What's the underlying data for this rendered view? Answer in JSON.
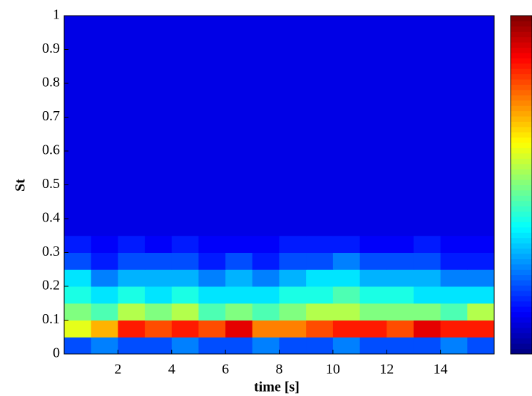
{
  "chart_data": {
    "type": "heatmap",
    "xlabel": "time [s]",
    "ylabel": "St",
    "xlim": [
      0,
      16
    ],
    "ylim": [
      0,
      1
    ],
    "xticks": [
      2,
      4,
      6,
      8,
      10,
      12,
      14
    ],
    "yticks": [
      0,
      0.1,
      0.2,
      0.3,
      0.4,
      0.5,
      0.6,
      0.7,
      0.8,
      0.9,
      1
    ],
    "colormap": "jet",
    "clim": [
      0,
      1
    ],
    "colorbar": true,
    "xbins": [
      0,
      1,
      2,
      3,
      4,
      5,
      6,
      7,
      8,
      9,
      10,
      11,
      12,
      13,
      14,
      15,
      16
    ],
    "ybins": [
      0,
      0.05,
      0.1,
      0.15,
      0.2,
      0.25,
      0.3,
      0.35,
      0.4,
      0.45,
      0.5,
      0.55,
      0.6,
      0.65,
      0.7,
      0.75,
      0.8,
      0.85,
      0.9,
      0.95,
      1
    ],
    "z": [
      [
        0.2,
        0.25,
        0.2,
        0.2,
        0.25,
        0.2,
        0.2,
        0.25,
        0.2,
        0.2,
        0.25,
        0.2,
        0.2,
        0.2,
        0.25,
        0.2
      ],
      [
        0.6,
        0.7,
        0.85,
        0.8,
        0.85,
        0.8,
        0.9,
        0.75,
        0.75,
        0.8,
        0.85,
        0.85,
        0.8,
        0.9,
        0.85,
        0.85
      ],
      [
        0.5,
        0.45,
        0.55,
        0.5,
        0.55,
        0.45,
        0.5,
        0.45,
        0.5,
        0.55,
        0.55,
        0.5,
        0.5,
        0.5,
        0.45,
        0.55
      ],
      [
        0.4,
        0.35,
        0.4,
        0.35,
        0.4,
        0.35,
        0.35,
        0.35,
        0.4,
        0.4,
        0.45,
        0.4,
        0.4,
        0.35,
        0.35,
        0.35
      ],
      [
        0.35,
        0.25,
        0.3,
        0.3,
        0.3,
        0.25,
        0.3,
        0.25,
        0.3,
        0.35,
        0.35,
        0.3,
        0.3,
        0.3,
        0.25,
        0.25
      ],
      [
        0.2,
        0.15,
        0.2,
        0.2,
        0.2,
        0.15,
        0.2,
        0.15,
        0.2,
        0.2,
        0.25,
        0.2,
        0.2,
        0.2,
        0.15,
        0.15
      ],
      [
        0.15,
        0.12,
        0.15,
        0.12,
        0.15,
        0.12,
        0.12,
        0.12,
        0.15,
        0.15,
        0.15,
        0.12,
        0.12,
        0.15,
        0.12,
        0.12
      ],
      [
        0.1,
        0.1,
        0.1,
        0.1,
        0.1,
        0.1,
        0.1,
        0.1,
        0.1,
        0.1,
        0.1,
        0.1,
        0.1,
        0.1,
        0.1,
        0.1
      ],
      [
        0.1,
        0.1,
        0.1,
        0.1,
        0.1,
        0.1,
        0.1,
        0.1,
        0.1,
        0.1,
        0.1,
        0.1,
        0.1,
        0.1,
        0.1,
        0.1
      ],
      [
        0.1,
        0.1,
        0.1,
        0.1,
        0.1,
        0.1,
        0.1,
        0.1,
        0.1,
        0.1,
        0.1,
        0.1,
        0.1,
        0.1,
        0.1,
        0.1
      ],
      [
        0.1,
        0.1,
        0.1,
        0.1,
        0.1,
        0.1,
        0.1,
        0.1,
        0.1,
        0.1,
        0.1,
        0.1,
        0.1,
        0.1,
        0.1,
        0.1
      ],
      [
        0.1,
        0.1,
        0.1,
        0.1,
        0.1,
        0.1,
        0.1,
        0.1,
        0.1,
        0.1,
        0.1,
        0.1,
        0.1,
        0.1,
        0.1,
        0.1
      ],
      [
        0.1,
        0.1,
        0.1,
        0.1,
        0.1,
        0.1,
        0.1,
        0.1,
        0.1,
        0.1,
        0.1,
        0.1,
        0.1,
        0.1,
        0.1,
        0.1
      ],
      [
        0.1,
        0.1,
        0.1,
        0.1,
        0.1,
        0.1,
        0.1,
        0.1,
        0.1,
        0.1,
        0.1,
        0.1,
        0.1,
        0.1,
        0.1,
        0.1
      ],
      [
        0.1,
        0.1,
        0.1,
        0.1,
        0.1,
        0.1,
        0.1,
        0.1,
        0.1,
        0.1,
        0.1,
        0.1,
        0.1,
        0.1,
        0.1,
        0.1
      ],
      [
        0.1,
        0.1,
        0.1,
        0.1,
        0.1,
        0.1,
        0.1,
        0.1,
        0.1,
        0.1,
        0.1,
        0.1,
        0.1,
        0.1,
        0.1,
        0.1
      ],
      [
        0.1,
        0.1,
        0.1,
        0.1,
        0.1,
        0.1,
        0.1,
        0.1,
        0.1,
        0.1,
        0.1,
        0.1,
        0.1,
        0.1,
        0.1,
        0.1
      ],
      [
        0.1,
        0.1,
        0.1,
        0.1,
        0.1,
        0.1,
        0.1,
        0.1,
        0.1,
        0.1,
        0.1,
        0.1,
        0.1,
        0.1,
        0.1,
        0.1
      ],
      [
        0.1,
        0.1,
        0.1,
        0.1,
        0.1,
        0.1,
        0.1,
        0.1,
        0.1,
        0.1,
        0.1,
        0.1,
        0.1,
        0.1,
        0.1,
        0.1
      ],
      [
        0.1,
        0.1,
        0.1,
        0.1,
        0.1,
        0.1,
        0.1,
        0.1,
        0.1,
        0.1,
        0.1,
        0.1,
        0.1,
        0.1,
        0.1,
        0.1
      ]
    ]
  }
}
